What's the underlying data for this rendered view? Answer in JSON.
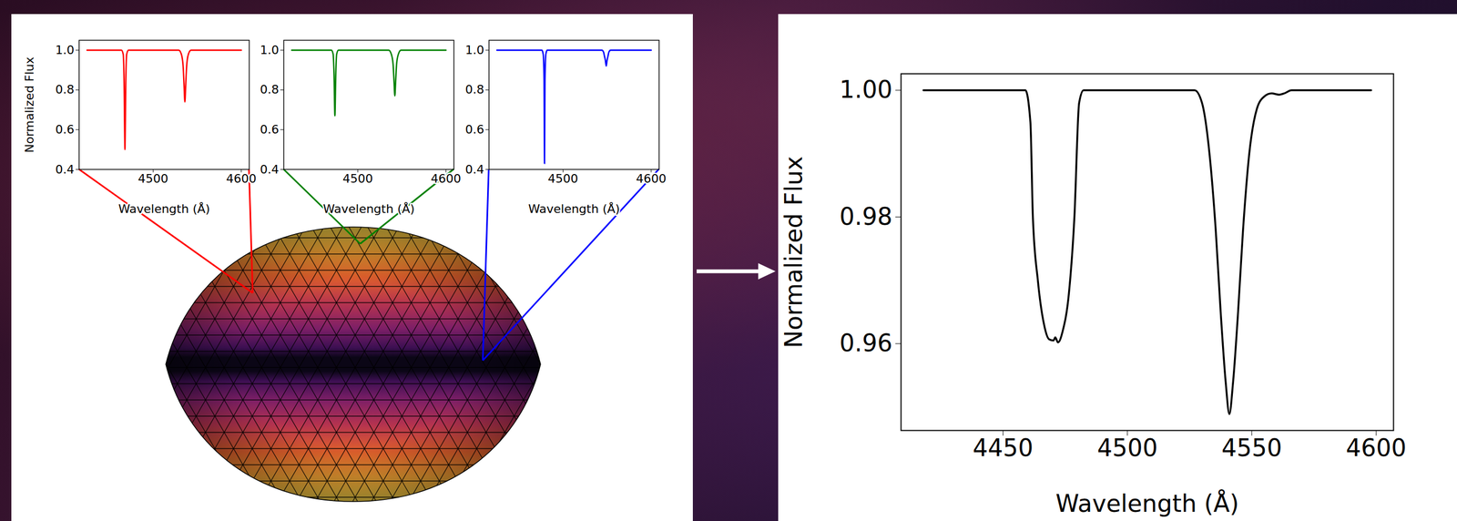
{
  "chart_data": [
    {
      "type": "line",
      "color": "red",
      "x_label": "Wavelength (Å)",
      "y_label": "Normalized Flux",
      "xlim": [
        4416,
        4609
      ],
      "ylim": [
        0.4,
        1.05
      ],
      "xticks": [
        4500,
        4600
      ],
      "yticks": [
        0.4,
        0.6,
        0.8,
        {
          "value": 1,
          "label": "1.0"
        }
      ],
      "x": [
        4425,
        4464,
        4466,
        4467,
        4468,
        4469,
        4470,
        4472,
        4529,
        4532,
        4534,
        4535,
        4536,
        4537,
        4538,
        4540,
        4543,
        4600
      ],
      "values": [
        1,
        1,
        0.98,
        0.85,
        0.5,
        0.85,
        0.98,
        1,
        1,
        0.98,
        0.92,
        0.83,
        0.74,
        0.83,
        0.92,
        0.98,
        1,
        1
      ]
    },
    {
      "type": "line",
      "color": "green",
      "x_label": "Wavelength (Å)",
      "xlim": [
        4416,
        4609
      ],
      "ylim": [
        0.4,
        1.05
      ],
      "xticks": [
        4500,
        4600
      ],
      "yticks": [
        0.4,
        0.6,
        0.8,
        {
          "value": 1,
          "label": "1.0"
        }
      ],
      "x": [
        4425,
        4470,
        4472,
        4473,
        4474,
        4475,
        4476,
        4478,
        4535,
        4538,
        4540,
        4541,
        4542,
        4543,
        4544,
        4546,
        4549,
        4600
      ],
      "values": [
        1,
        1,
        0.98,
        0.88,
        0.67,
        0.88,
        0.98,
        1,
        1,
        0.98,
        0.93,
        0.85,
        0.77,
        0.85,
        0.93,
        0.98,
        1,
        1
      ]
    },
    {
      "type": "line",
      "color": "blue",
      "x_label": "Wavelength (Å)",
      "xlim": [
        4416,
        4609
      ],
      "ylim": [
        0.4,
        1.05
      ],
      "xticks": [
        4500,
        4600
      ],
      "yticks": [
        0.4,
        0.6,
        0.8,
        {
          "value": 1,
          "label": "1.0"
        }
      ],
      "x": [
        4425,
        4476,
        4477.5,
        4478.5,
        4479,
        4479.5,
        4480.5,
        4482,
        4544,
        4546,
        4547,
        4548,
        4549,
        4550,
        4551,
        4552,
        4554,
        4600
      ],
      "values": [
        1,
        1,
        0.98,
        0.85,
        0.43,
        0.85,
        0.98,
        1,
        1,
        0.99,
        0.97,
        0.95,
        0.92,
        0.95,
        0.97,
        0.99,
        1,
        1
      ]
    },
    {
      "type": "line",
      "color": "black",
      "x_label": "Wavelength (Å)",
      "y_label": "Normalized Flux",
      "xlim": [
        4409,
        4607
      ],
      "ylim": [
        0.9463,
        1.0026
      ],
      "xticks": [
        4450,
        4500,
        4550,
        4600
      ],
      "yticks": [
        0.96,
        0.98,
        {
          "value": 1,
          "label": "1.00"
        }
      ],
      "x": [
        4418,
        4459,
        4461,
        4462,
        4464,
        4466.5,
        4468.5,
        4470.3,
        4471,
        4472.1,
        4474,
        4476.5,
        4478.7,
        4480.6,
        4482.4,
        4527,
        4530,
        4533,
        4535.5,
        4537.5,
        4539.5,
        4541,
        4542.5,
        4544.5,
        4546.5,
        4549,
        4552,
        4555,
        4558,
        4561,
        4563,
        4566,
        4598
      ],
      "values": [
        1,
        1,
        0.995,
        0.98,
        0.97,
        0.963,
        0.9607,
        0.9605,
        0.961,
        0.9602,
        0.962,
        0.968,
        0.98,
        0.998,
        1,
        1,
        0.998,
        0.99,
        0.978,
        0.965,
        0.954,
        0.9489,
        0.954,
        0.965,
        0.978,
        0.99,
        0.997,
        0.999,
        0.9995,
        0.9993,
        0.9995,
        1,
        1
      ]
    }
  ]
}
